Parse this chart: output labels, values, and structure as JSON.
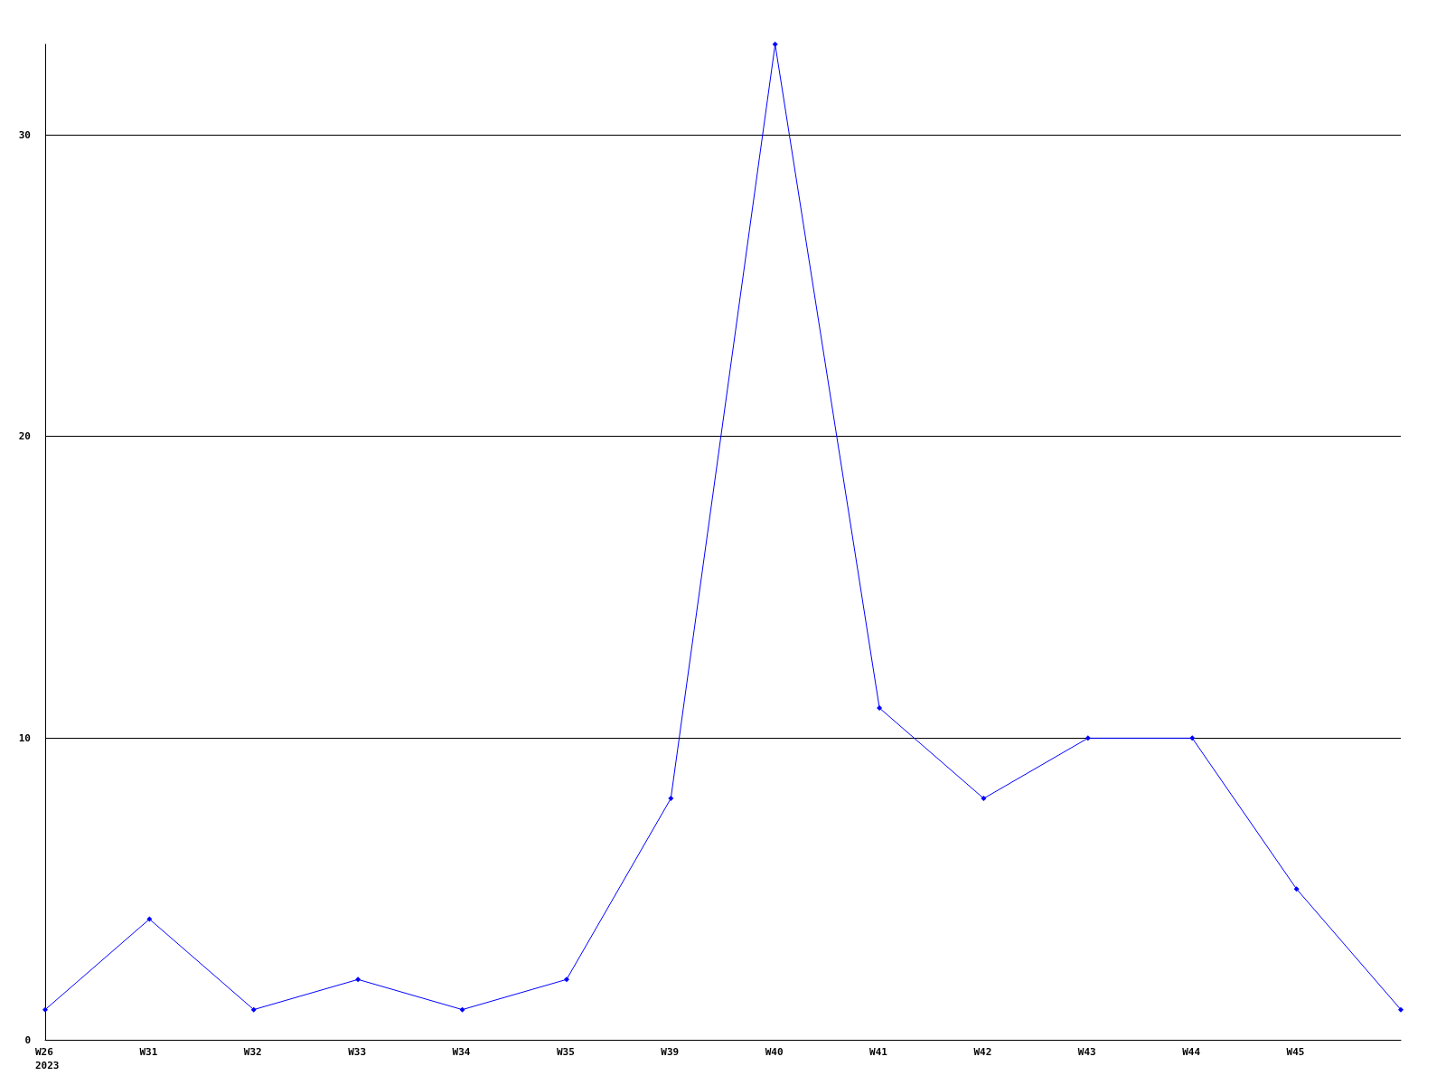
{
  "chart_data": {
    "type": "line",
    "categories": [
      "W26\n2023",
      "W31",
      "W32",
      "W33",
      "W34",
      "W35",
      "W39",
      "W40",
      "W41",
      "W42",
      "W43",
      "W44",
      "W45",
      null
    ],
    "series": [
      {
        "color": "#0000ff",
        "values": [
          1,
          4,
          1,
          2,
          1,
          2,
          8,
          33,
          11,
          8,
          10,
          10,
          5,
          1
        ]
      }
    ],
    "ylim": [
      0,
      33
    ],
    "yticks": [
      0,
      10,
      20,
      30
    ],
    "grid": "y",
    "marker": "diamond",
    "line_style": "solid"
  }
}
